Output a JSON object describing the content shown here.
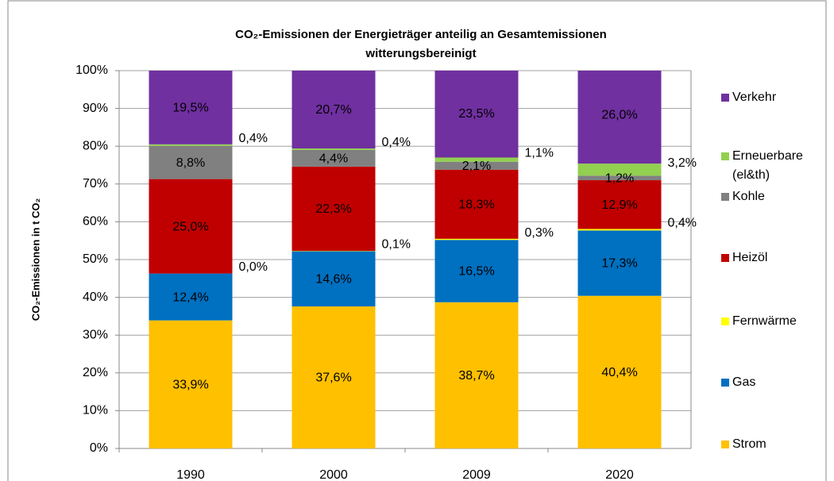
{
  "chart_data": {
    "type": "stacked_bar",
    "title": "CO₂-Emissionen der Energieträger anteilig an Gesamtemissionen",
    "subtitle": "witterungsbereinigt",
    "y_label": "CO₂-Emissionen in t CO₂",
    "categories": [
      "1990",
      "2000",
      "2009",
      "2020"
    ],
    "series": [
      {
        "name": "Strom",
        "color": "#FFC000",
        "label_color": "#000000",
        "label_position": "inside",
        "values": [
          33.9,
          37.6,
          38.7,
          40.4
        ],
        "value_labels": [
          "33,9%",
          "37,6%",
          "38,7%",
          "40,4%"
        ]
      },
      {
        "name": "Gas",
        "color": "#0070C0",
        "label_color": "#FFFFFF",
        "label_position": "inside",
        "values": [
          12.4,
          14.6,
          16.5,
          17.3
        ],
        "value_labels": [
          "12,4%",
          "14,6%",
          "16,5%",
          "17,3%"
        ]
      },
      {
        "name": "Fernwärme",
        "color": "#FFFF00",
        "label_color": "#000000",
        "label_position": "outside",
        "values": [
          0.0,
          0.1,
          0.3,
          0.4
        ],
        "value_labels": [
          "0,0%",
          "0,1%",
          "0,3%",
          "0,4%"
        ]
      },
      {
        "name": "Heizöl",
        "color": "#C00000",
        "label_color": "#FFC000",
        "label_position": "inside",
        "values": [
          25.0,
          22.3,
          18.3,
          12.9
        ],
        "value_labels": [
          "25,0%",
          "22,3%",
          "18,3%",
          "12,9%"
        ]
      },
      {
        "name": "Kohle",
        "color": "#808080",
        "label_color": "#000000",
        "label_position": "inside",
        "values": [
          8.8,
          4.4,
          2.1,
          1.2
        ],
        "value_labels": [
          "8,8%",
          "4,4%",
          "2,1%",
          "1,2%"
        ]
      },
      {
        "name": "Erneuerbare (el&th)",
        "color": "#92D050",
        "label_color": "#228B22",
        "label_position": "outside",
        "values": [
          0.4,
          0.4,
          1.1,
          3.2
        ],
        "value_labels": [
          "0,4%",
          "0,4%",
          "1,1%",
          "3,2%"
        ]
      },
      {
        "name": "Verkehr",
        "color": "#7030A0",
        "label_color": "#FFFFFF",
        "label_position": "inside",
        "values": [
          19.5,
          20.7,
          23.5,
          26.0
        ],
        "value_labels": [
          "19,5%",
          "20,7%",
          "23,5%",
          "26,0%"
        ]
      }
    ],
    "ylim": [
      0,
      100
    ],
    "yticks": [
      {
        "value": 0,
        "label": "0%"
      },
      {
        "value": 10,
        "label": "10%"
      },
      {
        "value": 20,
        "label": "20%"
      },
      {
        "value": 30,
        "label": "30%"
      },
      {
        "value": 40,
        "label": "40%"
      },
      {
        "value": 50,
        "label": "50%"
      },
      {
        "value": 60,
        "label": "60%"
      },
      {
        "value": 70,
        "label": "70%"
      },
      {
        "value": 80,
        "label": "80%"
      },
      {
        "value": 90,
        "label": "90%"
      },
      {
        "value": 100,
        "label": "100%"
      }
    ],
    "grid": true,
    "legend": "right"
  }
}
